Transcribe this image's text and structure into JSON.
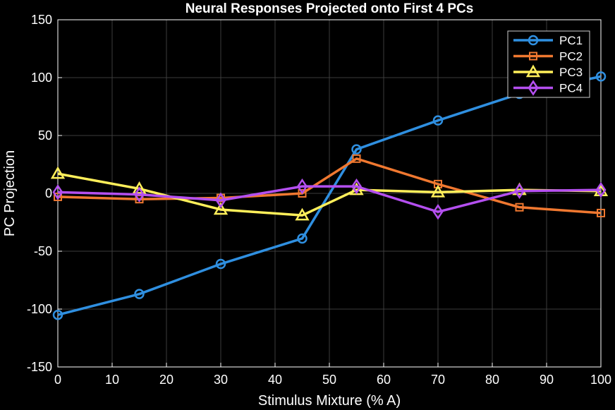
{
  "chart_data": {
    "type": "line",
    "title": "Neural Responses Projected onto First 4 PCs",
    "xlabel": "Stimulus Mixture (% A)",
    "ylabel": "PC Projection",
    "xlim": [
      0,
      100
    ],
    "ylim": [
      -150,
      150
    ],
    "xticks": [
      "0",
      "10",
      "20",
      "30",
      "40",
      "50",
      "60",
      "70",
      "80",
      "90",
      "100"
    ],
    "yticks": [
      "-150",
      "-100",
      "-50",
      "0",
      "50",
      "100",
      "150"
    ],
    "grid": true,
    "legend_position": "top-right",
    "background": "#000000",
    "axes_color": "#ffffff",
    "x": [
      0,
      15,
      30,
      45,
      55,
      70,
      85,
      100
    ],
    "series": [
      {
        "name": "PC1",
        "color": "#2f8fe0",
        "marker": "circle",
        "values": [
          -105,
          -87,
          -61,
          -39,
          38,
          63,
          86,
          101
        ]
      },
      {
        "name": "PC2",
        "color": "#f07830",
        "marker": "square",
        "values": [
          -3,
          -5,
          -4,
          0,
          30,
          8,
          -12,
          -17
        ]
      },
      {
        "name": "PC3",
        "color": "#ffef5a",
        "marker": "triangle",
        "values": [
          17,
          4,
          -14,
          -19,
          3,
          1,
          3,
          2
        ]
      },
      {
        "name": "PC4",
        "color": "#b44ff0",
        "marker": "diamond",
        "values": [
          1,
          -1,
          -6,
          6,
          6,
          -16,
          2,
          3
        ]
      }
    ]
  }
}
